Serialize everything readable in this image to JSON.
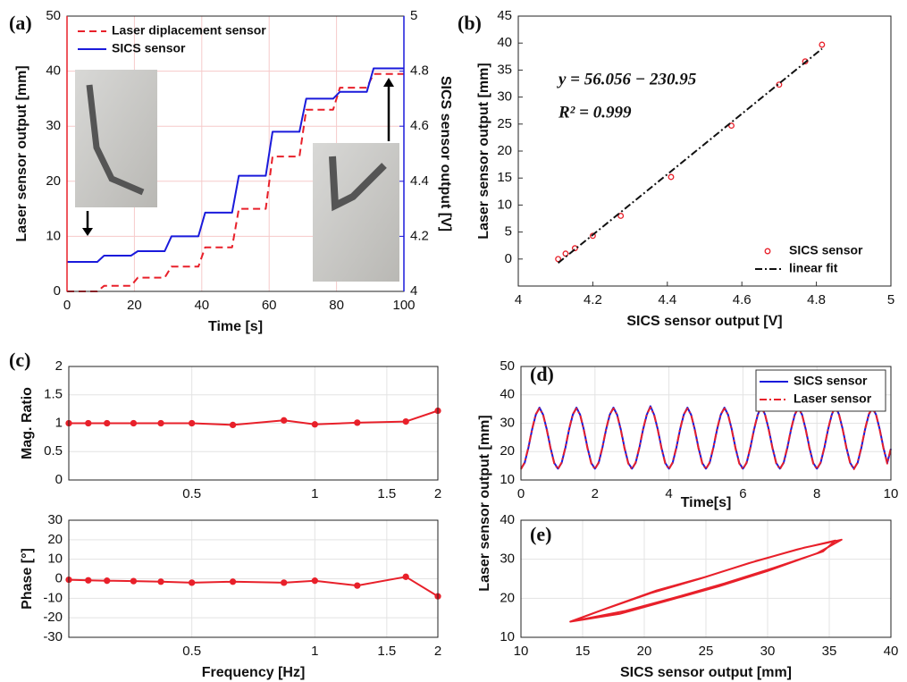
{
  "chart_data": [
    {
      "type": "line",
      "panel_label": "(a)",
      "x_label": "Time [s]",
      "y_label": "Laser sensor output [mm]",
      "y2_label": "SICS sensor output [V]",
      "y_color": "#e8202a",
      "y2_color": "#1a1adb",
      "xlim": [
        0,
        100
      ],
      "xticks": [
        0,
        20,
        40,
        60,
        80,
        100
      ],
      "ylim": [
        0,
        50
      ],
      "yticks": [
        0,
        10,
        20,
        30,
        40,
        50
      ],
      "y2lim": [
        4,
        5
      ],
      "y2ticks": [
        4,
        4.2,
        4.4,
        4.6,
        4.8,
        5
      ],
      "grid": true,
      "legend": "upper left",
      "series": [
        {
          "name": "Laser diplacement sensor",
          "color": "#e8202a",
          "style": "dashed",
          "x": [
            0,
            9,
            11,
            19,
            21,
            29,
            31,
            39,
            41,
            49,
            51,
            59,
            61,
            69,
            71,
            79,
            81,
            89,
            91,
            100
          ],
          "values": [
            0,
            0,
            1,
            1,
            2.5,
            2.5,
            4.5,
            4.5,
            8,
            8,
            15,
            15,
            24.5,
            24.5,
            33,
            33,
            37,
            37,
            39.5,
            39.5
          ]
        },
        {
          "name": "SICS sensor",
          "color": "#1a1adb",
          "style": "solid",
          "axis": "y2",
          "x": [
            0,
            9,
            11,
            19,
            21,
            29,
            31,
            39,
            41,
            49,
            51,
            59,
            61,
            69,
            71,
            79,
            81,
            89,
            91,
            100
          ],
          "values": [
            4.107,
            4.107,
            4.13,
            4.13,
            4.146,
            4.146,
            4.2,
            4.2,
            4.286,
            4.286,
            4.42,
            4.42,
            4.58,
            4.58,
            4.7,
            4.7,
            4.725,
            4.725,
            4.81,
            4.81
          ]
        }
      ]
    },
    {
      "type": "scatter",
      "panel_label": "(b)",
      "x_label": "SICS sensor output [V]",
      "y_label": "Laser sensor output [mm]",
      "xlim": [
        4,
        5
      ],
      "xticks": [
        4,
        4.2,
        4.4,
        4.6,
        4.8,
        5
      ],
      "ylim": [
        -5,
        45
      ],
      "yticks": [
        0,
        5,
        10,
        15,
        20,
        25,
        30,
        35,
        40,
        45
      ],
      "grid": false,
      "legend": "lower right",
      "annotations": [
        "y = 56.056 − 230.95",
        "R² = 0.999"
      ],
      "series": [
        {
          "name": "SICS sensor",
          "color": "#e8202a",
          "style": "markers",
          "x": [
            4.107,
            4.127,
            4.152,
            4.2,
            4.275,
            4.41,
            4.572,
            4.7,
            4.77,
            4.815
          ],
          "values": [
            0,
            1,
            2,
            4.3,
            8,
            15.2,
            24.7,
            32.3,
            36.6,
            39.7
          ]
        },
        {
          "name": "linear fit",
          "color": "#111111",
          "style": "dashdot",
          "x": [
            4.107,
            4.815
          ],
          "values": [
            -0.73,
            38.96
          ]
        }
      ]
    },
    {
      "type": "line",
      "panel_label": "(c)",
      "y_label": "Mag. Ratio",
      "xscale": "log",
      "xlim": [
        0.25,
        2
      ],
      "xticks": [
        0.5,
        1,
        1.5,
        2
      ],
      "ylim": [
        0,
        2
      ],
      "yticks": [
        0,
        0.5,
        1,
        1.5,
        2
      ],
      "grid": true,
      "series": [
        {
          "color": "#e8202a",
          "style": "line+markers",
          "x": [
            0.25,
            0.279,
            0.31,
            0.36,
            0.42,
            0.5,
            0.63,
            0.84,
            1,
            1.27,
            1.67,
            2
          ],
          "values": [
            1.0,
            1.0,
            1.0,
            1.0,
            1.0,
            1.0,
            0.97,
            1.05,
            0.98,
            1.01,
            1.03,
            1.22
          ]
        }
      ]
    },
    {
      "type": "line",
      "x_label": "Frequency [Hz]",
      "y_label": "Phase [°]",
      "xscale": "log",
      "xlim": [
        0.25,
        2
      ],
      "xticks": [
        0.5,
        1,
        1.5,
        2
      ],
      "ylim": [
        -30,
        30
      ],
      "yticks": [
        -30,
        -20,
        -10,
        0,
        10,
        20,
        30
      ],
      "grid": true,
      "series": [
        {
          "color": "#e8202a",
          "style": "line+markers",
          "x": [
            0.25,
            0.279,
            0.31,
            0.36,
            0.42,
            0.5,
            0.63,
            0.84,
            1,
            1.27,
            1.67,
            2
          ],
          "values": [
            -0.5,
            -0.8,
            -1,
            -1.2,
            -1.5,
            -2,
            -1.5,
            -2,
            -1,
            -3.5,
            1,
            -9
          ]
        }
      ]
    },
    {
      "type": "line",
      "panel_label": "(d)",
      "x_label": "Time[s]",
      "xlim": [
        0,
        10
      ],
      "xticks": [
        0,
        2,
        4,
        6,
        8,
        10
      ],
      "ylim": [
        10,
        50
      ],
      "yticks": [
        10,
        20,
        30,
        40,
        50
      ],
      "grid": true,
      "legend": "upper right",
      "series": [
        {
          "name": "SICS sensor",
          "color": "#1a1adb",
          "style": "solid",
          "x": [
            0,
            0.1,
            0.2,
            0.3,
            0.4,
            0.5,
            0.6,
            0.7,
            0.8,
            0.9,
            1,
            1.1,
            1.2,
            1.3,
            1.4,
            1.5,
            1.6,
            1.7,
            1.8,
            1.9,
            2,
            2.1,
            2.2,
            2.3,
            2.4,
            2.5,
            2.6,
            2.7,
            2.8,
            2.9,
            3,
            3.1,
            3.2,
            3.3,
            3.4,
            3.5,
            3.6,
            3.7,
            3.8,
            3.9,
            4,
            4.1,
            4.2,
            4.3,
            4.4,
            4.5,
            4.6,
            4.7,
            4.8,
            4.9,
            5,
            5.1,
            5.2,
            5.3,
            5.4,
            5.5,
            5.6,
            5.7,
            5.8,
            5.9,
            6,
            6.1,
            6.2,
            6.3,
            6.4,
            6.5,
            6.6,
            6.7,
            6.8,
            6.9,
            7,
            7.1,
            7.2,
            7.3,
            7.4,
            7.5,
            7.6,
            7.7,
            7.8,
            7.9,
            8,
            8.1,
            8.2,
            8.3,
            8.4,
            8.5,
            8.6,
            8.7,
            8.8,
            8.9,
            9,
            9.1,
            9.2,
            9.3,
            9.4,
            9.5,
            9.6,
            9.7,
            9.8,
            9.9,
            10
          ],
          "values": [
            14,
            16,
            21.3,
            27.7,
            33,
            35.5,
            33,
            27.7,
            21.3,
            16,
            14,
            16,
            21.3,
            27.7,
            33,
            35.5,
            33,
            27.7,
            21.3,
            16,
            14,
            16,
            21.3,
            27.7,
            33,
            35.5,
            33,
            27.7,
            21.3,
            16,
            14,
            16,
            21.3,
            27.7,
            33,
            36,
            33,
            27.7,
            21.3,
            16,
            14,
            16,
            21.3,
            27.7,
            33,
            35.5,
            33,
            27.7,
            21.3,
            16,
            14,
            16,
            21.3,
            27.7,
            33,
            35.5,
            33,
            27.7,
            21.3,
            16,
            14,
            16,
            21.3,
            27.7,
            33,
            36,
            33,
            27.7,
            21.3,
            16,
            14,
            16,
            21.3,
            27.7,
            33,
            35.5,
            33,
            27.7,
            21.3,
            16,
            14,
            16,
            21.3,
            27.7,
            33,
            36,
            33,
            27.7,
            21.3,
            16,
            14,
            16,
            21.3,
            27.7,
            33,
            35.5,
            33,
            27.7,
            21.3,
            16,
            21
          ]
        },
        {
          "name": "Laser sensor",
          "color": "#e8202a",
          "style": "dashdot",
          "x": [
            0,
            0.1,
            0.2,
            0.3,
            0.4,
            0.5,
            0.6,
            0.7,
            0.8,
            0.9,
            1,
            1.1,
            1.2,
            1.3,
            1.4,
            1.5,
            1.6,
            1.7,
            1.8,
            1.9,
            2,
            2.1,
            2.2,
            2.3,
            2.4,
            2.5,
            2.6,
            2.7,
            2.8,
            2.9,
            3,
            3.1,
            3.2,
            3.3,
            3.4,
            3.5,
            3.6,
            3.7,
            3.8,
            3.9,
            4,
            4.1,
            4.2,
            4.3,
            4.4,
            4.5,
            4.6,
            4.7,
            4.8,
            4.9,
            5,
            5.1,
            5.2,
            5.3,
            5.4,
            5.5,
            5.6,
            5.7,
            5.8,
            5.9,
            6,
            6.1,
            6.2,
            6.3,
            6.4,
            6.5,
            6.6,
            6.7,
            6.8,
            6.9,
            7,
            7.1,
            7.2,
            7.3,
            7.4,
            7.5,
            7.6,
            7.7,
            7.8,
            7.9,
            8,
            8.1,
            8.2,
            8.3,
            8.4,
            8.5,
            8.6,
            8.7,
            8.8,
            8.9,
            9,
            9.1,
            9.2,
            9.3,
            9.4,
            9.5,
            9.6,
            9.7,
            9.8,
            9.9,
            10
          ],
          "values": [
            13.8,
            16.2,
            21.5,
            27.9,
            33.2,
            35.2,
            33,
            27.5,
            21.1,
            15.8,
            13.8,
            16.2,
            21.5,
            27.9,
            33.2,
            35.2,
            33,
            27.5,
            21.1,
            15.8,
            13.8,
            16.2,
            21.5,
            27.9,
            33.2,
            35.2,
            33,
            27.5,
            21.1,
            15.8,
            13.8,
            16.2,
            21.5,
            27.9,
            33.2,
            35.6,
            33,
            27.5,
            21.1,
            15.8,
            13.8,
            16.2,
            21.5,
            27.9,
            33.2,
            35.2,
            33,
            27.5,
            21.1,
            15.8,
            13.8,
            16.2,
            21.5,
            27.9,
            33.2,
            35.2,
            33,
            27.5,
            21.1,
            15.8,
            13.8,
            16.2,
            21.5,
            27.9,
            33.2,
            35.6,
            33,
            27.5,
            21.1,
            15.8,
            13.8,
            16.2,
            21.5,
            27.9,
            33.2,
            35.2,
            33,
            27.5,
            21.1,
            15.8,
            13.8,
            16.2,
            21.5,
            27.9,
            33.2,
            35.6,
            33,
            27.5,
            21.1,
            15.8,
            13.8,
            16.2,
            21.5,
            27.9,
            33.2,
            35.2,
            33,
            27.5,
            21.1,
            15.8,
            21.2
          ]
        }
      ]
    },
    {
      "type": "line",
      "panel_label": "(e)",
      "x_label": "SICS sensor output [mm]",
      "y_label": "Laser sensor output [mm]",
      "xlim": [
        10,
        40
      ],
      "xticks": [
        10,
        15,
        20,
        25,
        30,
        35,
        40
      ],
      "ylim": [
        10,
        40
      ],
      "yticks": [
        10,
        20,
        30,
        40
      ],
      "grid": true,
      "series": [
        {
          "color": "#e8202a",
          "style": "solid",
          "x": [
            14,
            18,
            22,
            26,
            30,
            34,
            36,
            33,
            29,
            25,
            21,
            17,
            14,
            18.5,
            22.5,
            26.5,
            30.5,
            34.5,
            35.5,
            32.5,
            28.5,
            24.5,
            20.5,
            16.5,
            14.2
          ],
          "values": [
            14,
            16,
            19.5,
            23,
            27,
            31.5,
            35,
            33,
            29.5,
            25.5,
            22,
            17.5,
            14,
            16.8,
            20.2,
            23.8,
            27.8,
            32,
            34.8,
            32.6,
            29,
            25,
            21.3,
            16.9,
            14.2
          ]
        }
      ]
    }
  ]
}
